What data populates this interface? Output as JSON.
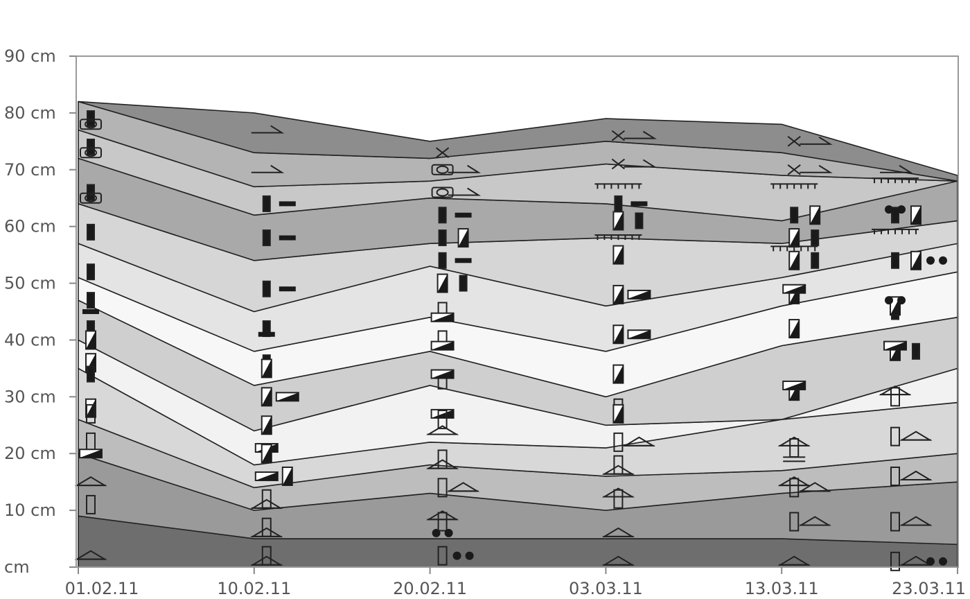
{
  "chart_data": {
    "type": "area",
    "title": "",
    "xlabel": "",
    "ylabel": "",
    "x_tick_labels": [
      "01.02.11",
      "10.02.11",
      "20.02.11",
      "03.03.11",
      "13.03.11",
      "23.03.11"
    ],
    "y_tick_labels": [
      "cm",
      "10 cm",
      "20 cm",
      "30 cm",
      "40 cm",
      "50 cm",
      "60 cm",
      "70 cm",
      "80 cm",
      "90 cm"
    ],
    "y_tick_values": [
      0,
      10,
      20,
      30,
      40,
      50,
      60,
      70,
      80,
      90
    ],
    "ylim": [
      0,
      90
    ],
    "grid": false,
    "layer_boundaries_cm": [
      [
        0,
        0,
        0,
        0,
        0,
        0
      ],
      [
        9,
        5,
        5,
        5,
        5,
        4
      ],
      [
        20,
        10,
        13,
        10,
        13,
        15
      ],
      [
        26,
        14,
        18,
        16,
        17,
        20
      ],
      [
        35,
        18,
        22,
        21,
        26,
        29
      ],
      [
        40,
        24,
        32,
        25,
        26,
        35
      ],
      [
        47,
        32,
        38,
        30,
        39,
        44
      ],
      [
        51,
        38,
        44,
        38,
        46,
        52
      ],
      [
        57,
        45,
        53,
        46,
        51,
        57
      ],
      [
        64,
        54,
        57,
        58,
        57,
        61
      ],
      [
        72,
        62,
        65,
        64,
        61,
        68
      ],
      [
        77,
        67,
        68,
        71,
        69,
        68
      ],
      [
        82,
        73,
        72,
        75,
        73,
        68
      ],
      [
        82,
        80,
        75,
        79,
        78,
        69
      ]
    ],
    "layer_colors": [
      "#6e6e6e",
      "#9a9a9a",
      "#bdbdbd",
      "#d8d8d8",
      "#f2f2f2",
      "#cfcfcf",
      "#f7f7f7",
      "#e4e4e4",
      "#d6d6d6",
      "#a9a9a9",
      "#c8c8c8",
      "#b4b4b4",
      "#8d8d8d"
    ],
    "symbols": [
      {
        "kind": "bar",
        "x": 0,
        "y": 79
      },
      {
        "kind": "oval",
        "x": 0,
        "y": 78
      },
      {
        "kind": "bar",
        "x": 0,
        "y": 74
      },
      {
        "kind": "oval",
        "x": 0,
        "y": 73
      },
      {
        "kind": "bar",
        "x": 0,
        "y": 66
      },
      {
        "kind": "oval",
        "x": 0,
        "y": 65
      },
      {
        "kind": "bar",
        "x": 0,
        "y": 59
      },
      {
        "kind": "bar",
        "x": 0,
        "y": 52
      },
      {
        "kind": "bar",
        "x": 0,
        "y": 47
      },
      {
        "kind": "dash",
        "x": 0,
        "y": 45
      },
      {
        "kind": "bar",
        "x": 0,
        "y": 42
      },
      {
        "kind": "halfbar",
        "x": 0,
        "y": 40
      },
      {
        "kind": "halfbar",
        "x": 0,
        "y": 36
      },
      {
        "kind": "bar",
        "x": 0,
        "y": 34
      },
      {
        "kind": "halfbar",
        "x": 0,
        "y": 28
      },
      {
        "kind": "rect",
        "x": 0,
        "y": 27
      },
      {
        "kind": "rect",
        "x": 0,
        "y": 22
      },
      {
        "kind": "halfdash",
        "x": 0,
        "y": 20
      },
      {
        "kind": "tri",
        "x": 0,
        "y": 15
      },
      {
        "kind": "rect",
        "x": 0,
        "y": 11
      },
      {
        "kind": "tri",
        "x": 0,
        "y": 2
      },
      {
        "kind": "chev",
        "x": 1,
        "y": 77
      },
      {
        "kind": "chev",
        "x": 1,
        "y": 70
      },
      {
        "kind": "bar",
        "x": 1,
        "y": 64
      },
      {
        "kind": "dash",
        "x": 1,
        "y": 64
      },
      {
        "kind": "bar",
        "x": 1,
        "y": 58
      },
      {
        "kind": "dash",
        "x": 1,
        "y": 58
      },
      {
        "kind": "bar",
        "x": 1,
        "y": 49
      },
      {
        "kind": "dash",
        "x": 1,
        "y": 49
      },
      {
        "kind": "bar",
        "x": 1,
        "y": 42
      },
      {
        "kind": "dash",
        "x": 1,
        "y": 41
      },
      {
        "kind": "bar",
        "x": 1,
        "y": 36
      },
      {
        "kind": "halfbar",
        "x": 1,
        "y": 35
      },
      {
        "kind": "halfbar",
        "x": 1,
        "y": 30
      },
      {
        "kind": "halfdash",
        "x": 1,
        "y": 30
      },
      {
        "kind": "halfbar",
        "x": 1,
        "y": 25
      },
      {
        "kind": "halfdash",
        "x": 1,
        "y": 21
      },
      {
        "kind": "halfbar",
        "x": 1,
        "y": 20
      },
      {
        "kind": "halfdash",
        "x": 1,
        "y": 16
      },
      {
        "kind": "halfbar",
        "x": 1,
        "y": 16
      },
      {
        "kind": "rect",
        "x": 1,
        "y": 12
      },
      {
        "kind": "tri",
        "x": 1,
        "y": 11
      },
      {
        "kind": "rect",
        "x": 1,
        "y": 7
      },
      {
        "kind": "tri",
        "x": 1,
        "y": 6
      },
      {
        "kind": "rect",
        "x": 1,
        "y": 2
      },
      {
        "kind": "tri",
        "x": 1,
        "y": 1
      },
      {
        "kind": "cross",
        "x": 2,
        "y": 73
      },
      {
        "kind": "oval",
        "x": 2,
        "y": 70
      },
      {
        "kind": "chev",
        "x": 2,
        "y": 70
      },
      {
        "kind": "oval",
        "x": 2,
        "y": 66
      },
      {
        "kind": "chev",
        "x": 2,
        "y": 66
      },
      {
        "kind": "bar",
        "x": 2,
        "y": 62
      },
      {
        "kind": "dash",
        "x": 2,
        "y": 62
      },
      {
        "kind": "bar",
        "x": 2,
        "y": 58
      },
      {
        "kind": "halfbar",
        "x": 2,
        "y": 58
      },
      {
        "kind": "bar",
        "x": 2,
        "y": 54
      },
      {
        "kind": "dash",
        "x": 2,
        "y": 54
      },
      {
        "kind": "halfbar",
        "x": 2,
        "y": 50
      },
      {
        "kind": "bar",
        "x": 2,
        "y": 50
      },
      {
        "kind": "rect",
        "x": 2,
        "y": 45
      },
      {
        "kind": "halfdash",
        "x": 2,
        "y": 44
      },
      {
        "kind": "rect",
        "x": 2,
        "y": 40
      },
      {
        "kind": "halfdash",
        "x": 2,
        "y": 39
      },
      {
        "kind": "rect",
        "x": 2,
        "y": 33
      },
      {
        "kind": "halfdash",
        "x": 2,
        "y": 34
      },
      {
        "kind": "halfdash",
        "x": 2,
        "y": 27
      },
      {
        "kind": "rect",
        "x": 2,
        "y": 26
      },
      {
        "kind": "tri",
        "x": 2,
        "y": 24
      },
      {
        "kind": "rect",
        "x": 2,
        "y": 19
      },
      {
        "kind": "tri",
        "x": 2,
        "y": 18
      },
      {
        "kind": "rect",
        "x": 2,
        "y": 14
      },
      {
        "kind": "tri",
        "x": 2,
        "y": 14
      },
      {
        "kind": "rect",
        "x": 2,
        "y": 8
      },
      {
        "kind": "tri",
        "x": 2,
        "y": 9
      },
      {
        "kind": "dots",
        "x": 2,
        "y": 6
      },
      {
        "kind": "rect",
        "x": 2,
        "y": 2
      },
      {
        "kind": "dots",
        "x": 2,
        "y": 2
      },
      {
        "kind": "cross",
        "x": 3,
        "y": 76
      },
      {
        "kind": "chev",
        "x": 3,
        "y": 76
      },
      {
        "kind": "cross",
        "x": 3,
        "y": 71
      },
      {
        "kind": "chev",
        "x": 3,
        "y": 71
      },
      {
        "kind": "comb",
        "x": 3,
        "y": 67
      },
      {
        "kind": "bar",
        "x": 3,
        "y": 64
      },
      {
        "kind": "dash",
        "x": 3,
        "y": 64
      },
      {
        "kind": "halfbar",
        "x": 3,
        "y": 61
      },
      {
        "kind": "bar",
        "x": 3,
        "y": 61
      },
      {
        "kind": "comb",
        "x": 3,
        "y": 58
      },
      {
        "kind": "halfbar",
        "x": 3,
        "y": 55
      },
      {
        "kind": "halfbar",
        "x": 3,
        "y": 48
      },
      {
        "kind": "halfdash",
        "x": 3,
        "y": 48
      },
      {
        "kind": "halfbar",
        "x": 3,
        "y": 41
      },
      {
        "kind": "halfdash",
        "x": 3,
        "y": 41
      },
      {
        "kind": "halfbar",
        "x": 3,
        "y": 34
      },
      {
        "kind": "rect",
        "x": 3,
        "y": 28
      },
      {
        "kind": "halfbar",
        "x": 3,
        "y": 27
      },
      {
        "kind": "rect",
        "x": 3,
        "y": 22
      },
      {
        "kind": "tri",
        "x": 3,
        "y": 22
      },
      {
        "kind": "rect",
        "x": 3,
        "y": 18
      },
      {
        "kind": "tri",
        "x": 3,
        "y": 17
      },
      {
        "kind": "tri",
        "x": 3,
        "y": 13
      },
      {
        "kind": "rect",
        "x": 3,
        "y": 12
      },
      {
        "kind": "tri",
        "x": 3,
        "y": 6
      },
      {
        "kind": "tri",
        "x": 3,
        "y": 1
      },
      {
        "kind": "cross",
        "x": 4,
        "y": 75
      },
      {
        "kind": "chev",
        "x": 4,
        "y": 75
      },
      {
        "kind": "cross",
        "x": 4,
        "y": 70
      },
      {
        "kind": "chev",
        "x": 4,
        "y": 70
      },
      {
        "kind": "comb",
        "x": 4,
        "y": 67
      },
      {
        "kind": "bar",
        "x": 4,
        "y": 62
      },
      {
        "kind": "halfbar",
        "x": 4,
        "y": 62
      },
      {
        "kind": "halfbar",
        "x": 4,
        "y": 58
      },
      {
        "kind": "bar",
        "x": 4,
        "y": 58
      },
      {
        "kind": "comb",
        "x": 4,
        "y": 56
      },
      {
        "kind": "halfbar",
        "x": 4,
        "y": 54
      },
      {
        "kind": "bar",
        "x": 4,
        "y": 54
      },
      {
        "kind": "halfbar",
        "x": 4,
        "y": 48
      },
      {
        "kind": "halfdash",
        "x": 4,
        "y": 49
      },
      {
        "kind": "halfbar",
        "x": 4,
        "y": 42
      },
      {
        "kind": "halfbar",
        "x": 4,
        "y": 31
      },
      {
        "kind": "halfdash",
        "x": 4,
        "y": 32
      },
      {
        "kind": "tri",
        "x": 4,
        "y": 22
      },
      {
        "kind": "dash2",
        "x": 4,
        "y": 19
      },
      {
        "kind": "rect",
        "x": 4,
        "y": 21
      },
      {
        "kind": "rect",
        "x": 4,
        "y": 14
      },
      {
        "kind": "tri",
        "x": 4,
        "y": 15
      },
      {
        "kind": "tri",
        "x": 4,
        "y": 14
      },
      {
        "kind": "rect",
        "x": 4,
        "y": 8
      },
      {
        "kind": "tri",
        "x": 4,
        "y": 8
      },
      {
        "kind": "tri",
        "x": 4,
        "y": 1
      },
      {
        "kind": "chev",
        "x": 5,
        "y": 70
      },
      {
        "kind": "comb",
        "x": 5,
        "y": 68
      },
      {
        "kind": "bar",
        "x": 5,
        "y": 62
      },
      {
        "kind": "halfbar",
        "x": 5,
        "y": 62
      },
      {
        "kind": "dots",
        "x": 5,
        "y": 63
      },
      {
        "kind": "comb",
        "x": 5,
        "y": 59
      },
      {
        "kind": "bar",
        "x": 5,
        "y": 54
      },
      {
        "kind": "halfbar",
        "x": 5,
        "y": 54
      },
      {
        "kind": "dots",
        "x": 5,
        "y": 54
      },
      {
        "kind": "bar",
        "x": 5,
        "y": 45
      },
      {
        "kind": "halfbar",
        "x": 5,
        "y": 46
      },
      {
        "kind": "dots",
        "x": 5,
        "y": 47
      },
      {
        "kind": "halfbar",
        "x": 5,
        "y": 38
      },
      {
        "kind": "bar",
        "x": 5,
        "y": 38
      },
      {
        "kind": "halfdash",
        "x": 5,
        "y": 39
      },
      {
        "kind": "rect",
        "x": 5,
        "y": 30
      },
      {
        "kind": "tri",
        "x": 5,
        "y": 31
      },
      {
        "kind": "rect",
        "x": 5,
        "y": 23
      },
      {
        "kind": "tri",
        "x": 5,
        "y": 23
      },
      {
        "kind": "rect",
        "x": 5,
        "y": 16
      },
      {
        "kind": "tri",
        "x": 5,
        "y": 16
      },
      {
        "kind": "rect",
        "x": 5,
        "y": 8
      },
      {
        "kind": "tri",
        "x": 5,
        "y": 8
      },
      {
        "kind": "rect",
        "x": 5,
        "y": 1
      },
      {
        "kind": "tri",
        "x": 5,
        "y": 1
      },
      {
        "kind": "dots",
        "x": 5,
        "y": 1
      }
    ]
  }
}
